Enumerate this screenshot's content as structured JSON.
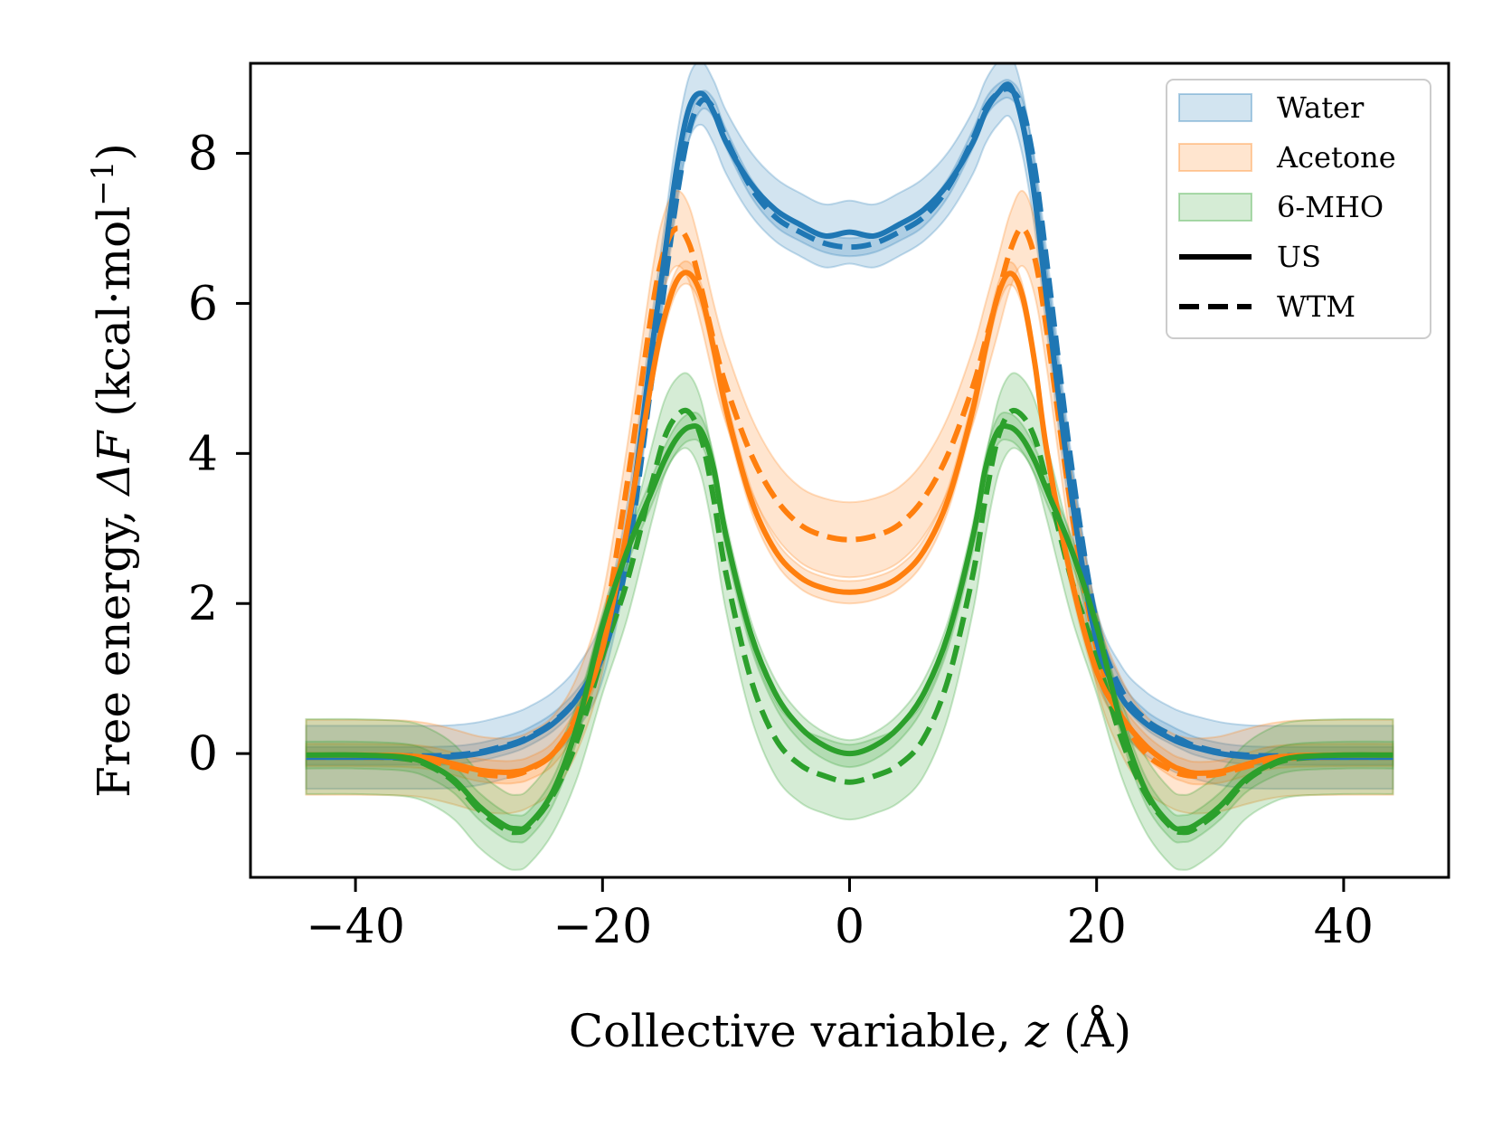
{
  "chart_data": {
    "type": "line",
    "title": "",
    "xlabel": "Collective variable, z (Å)",
    "xlabel_parts": {
      "pre": "Collective variable, ",
      "var": "z",
      "post": " (Å)"
    },
    "ylabel": "Free energy, ΔF (kcal·mol⁻¹)",
    "ylabel_parts": {
      "pre": "Free energy, ",
      "var": "ΔF",
      "unit": " (kcal·mol",
      "exp": "−1",
      "close": ")"
    },
    "xlim": [
      -48.5,
      48.5
    ],
    "ylim": [
      -1.65,
      9.2
    ],
    "xticks": [
      -40,
      -20,
      0,
      20,
      40
    ],
    "xtick_labels": [
      "−40",
      "−20",
      "0",
      "20",
      "40"
    ],
    "yticks": [
      0,
      2,
      4,
      6,
      8
    ],
    "ytick_labels": [
      "0",
      "2",
      "4",
      "6",
      "8"
    ],
    "legend_position": "top-right",
    "legend": [
      {
        "label": "Water",
        "kind": "band",
        "color": "#1f77b4"
      },
      {
        "label": "Acetone",
        "kind": "band",
        "color": "#ff7f0e"
      },
      {
        "label": "6-MHO",
        "kind": "band",
        "color": "#2ca02c"
      },
      {
        "label": "US",
        "kind": "solid",
        "color": "#000000"
      },
      {
        "label": "WTM",
        "kind": "dashed",
        "color": "#000000"
      }
    ],
    "x": [
      -44,
      -40,
      -36,
      -34,
      -32,
      -30,
      -28,
      -27,
      -26,
      -24,
      -22,
      -20,
      -18,
      -16,
      -15,
      -14,
      -13,
      -12,
      -11,
      -10,
      -8,
      -6,
      -4,
      -2,
      0,
      2,
      4,
      6,
      8,
      10,
      11,
      12,
      13,
      14,
      15,
      16,
      18,
      20,
      22,
      24,
      26,
      27,
      28,
      30,
      32,
      34,
      36,
      40,
      44
    ],
    "series": [
      {
        "name": "Water US",
        "system": "Water",
        "method": "US",
        "color": "#1f77b4",
        "dash": "solid",
        "band_halfwidth": 0.42,
        "values": [
          -0.05,
          -0.05,
          -0.05,
          -0.05,
          -0.04,
          0.0,
          0.08,
          0.13,
          0.2,
          0.4,
          0.75,
          1.4,
          2.9,
          5.4,
          6.6,
          7.8,
          8.6,
          8.8,
          8.55,
          8.15,
          7.6,
          7.25,
          7.05,
          6.9,
          6.95,
          6.9,
          7.05,
          7.25,
          7.6,
          8.15,
          8.55,
          8.8,
          8.9,
          8.4,
          7.4,
          6.0,
          3.4,
          1.5,
          0.75,
          0.4,
          0.2,
          0.13,
          0.08,
          0.0,
          -0.04,
          -0.05,
          -0.05,
          -0.05,
          -0.05
        ]
      },
      {
        "name": "Water WTM",
        "system": "Water",
        "method": "WTM",
        "color": "#1f77b4",
        "dash": "dashed",
        "band_halfwidth": 0.12,
        "values": [
          -0.03,
          -0.03,
          -0.03,
          -0.03,
          -0.02,
          0.02,
          0.1,
          0.15,
          0.22,
          0.42,
          0.75,
          1.3,
          2.6,
          5.0,
          6.2,
          7.4,
          8.3,
          8.7,
          8.6,
          8.2,
          7.55,
          7.15,
          6.95,
          6.8,
          6.75,
          6.8,
          6.95,
          7.15,
          7.55,
          8.2,
          8.6,
          8.8,
          8.85,
          8.6,
          7.8,
          6.5,
          3.8,
          1.75,
          0.85,
          0.45,
          0.25,
          0.17,
          0.1,
          0.02,
          -0.02,
          -0.03,
          -0.03,
          -0.03,
          -0.03
        ]
      },
      {
        "name": "Acetone US",
        "system": "Acetone",
        "method": "US",
        "color": "#ff7f0e",
        "dash": "solid",
        "band_halfwidth": 0.15,
        "values": [
          -0.02,
          -0.02,
          -0.03,
          -0.06,
          -0.14,
          -0.22,
          -0.25,
          -0.24,
          -0.2,
          0.0,
          0.5,
          1.4,
          3.0,
          5.0,
          5.8,
          6.3,
          6.4,
          6.1,
          5.4,
          4.6,
          3.4,
          2.7,
          2.35,
          2.2,
          2.15,
          2.2,
          2.35,
          2.7,
          3.4,
          4.6,
          5.4,
          6.1,
          6.4,
          6.1,
          5.2,
          4.0,
          2.3,
          1.1,
          0.5,
          0.1,
          -0.15,
          -0.22,
          -0.26,
          -0.24,
          -0.15,
          -0.06,
          -0.03,
          -0.02,
          -0.02
        ]
      },
      {
        "name": "Acetone WTM",
        "system": "Acetone",
        "method": "WTM",
        "color": "#ff7f0e",
        "dash": "dashed",
        "band_halfwidth": 0.5,
        "values": [
          -0.05,
          -0.05,
          -0.06,
          -0.1,
          -0.18,
          -0.27,
          -0.3,
          -0.28,
          -0.22,
          0.0,
          0.55,
          1.6,
          3.6,
          5.9,
          6.7,
          7.0,
          6.8,
          6.2,
          5.5,
          4.9,
          4.0,
          3.4,
          3.05,
          2.9,
          2.85,
          2.9,
          3.05,
          3.4,
          4.0,
          4.9,
          5.5,
          6.1,
          6.7,
          7.0,
          6.6,
          5.6,
          3.2,
          1.4,
          0.5,
          0.0,
          -0.22,
          -0.28,
          -0.3,
          -0.27,
          -0.18,
          -0.1,
          -0.06,
          -0.05,
          -0.05
        ]
      },
      {
        "name": "6-MHO US",
        "system": "6-MHO",
        "method": "US",
        "color": "#2ca02c",
        "dash": "solid",
        "band_halfwidth": 0.18,
        "values": [
          -0.02,
          -0.02,
          -0.05,
          -0.15,
          -0.35,
          -0.7,
          -0.95,
          -1.0,
          -0.95,
          -0.5,
          0.4,
          1.7,
          2.7,
          3.5,
          3.9,
          4.2,
          4.35,
          4.3,
          3.8,
          2.9,
          1.6,
          0.8,
          0.35,
          0.1,
          0.0,
          0.1,
          0.35,
          0.8,
          1.6,
          2.9,
          3.8,
          4.3,
          4.35,
          4.2,
          3.9,
          3.5,
          2.7,
          1.7,
          0.4,
          -0.5,
          -0.95,
          -1.0,
          -0.95,
          -0.7,
          -0.35,
          -0.15,
          -0.05,
          -0.02,
          -0.02
        ]
      },
      {
        "name": "6-MHO WTM",
        "system": "6-MHO",
        "method": "WTM",
        "color": "#2ca02c",
        "dash": "dashed",
        "band_halfwidth": 0.5,
        "values": [
          -0.04,
          -0.04,
          -0.07,
          -0.17,
          -0.38,
          -0.75,
          -1.0,
          -1.05,
          -0.98,
          -0.55,
          0.2,
          1.3,
          2.3,
          3.6,
          4.2,
          4.5,
          4.55,
          4.2,
          3.4,
          2.4,
          1.0,
          0.2,
          -0.15,
          -0.3,
          -0.38,
          -0.3,
          -0.15,
          0.2,
          1.0,
          2.4,
          3.4,
          4.2,
          4.55,
          4.5,
          4.2,
          3.6,
          2.3,
          1.3,
          0.2,
          -0.55,
          -0.98,
          -1.05,
          -1.0,
          -0.75,
          -0.38,
          -0.17,
          -0.07,
          -0.04,
          -0.04
        ]
      }
    ]
  }
}
